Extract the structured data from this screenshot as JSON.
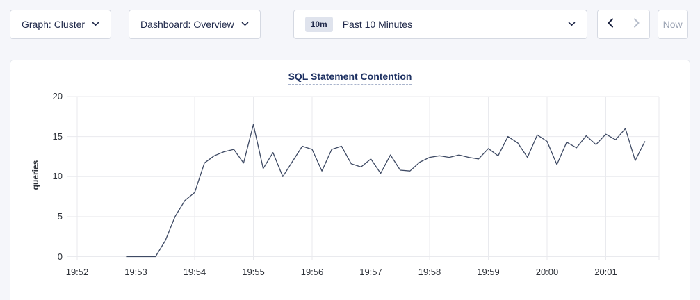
{
  "toolbar": {
    "graph_dropdown": {
      "label": "Graph: Cluster"
    },
    "dashboard_dropdown": {
      "label": "Dashboard: Overview"
    },
    "time_picker": {
      "badge": "10m",
      "label": "Past 10 Minutes"
    },
    "prev_label": "previous time window",
    "next_label": "next time window",
    "now_button": "Now"
  },
  "chart": {
    "title": "SQL Statement Contention",
    "ylabel": "queries"
  },
  "chart_data": {
    "type": "line",
    "title": "SQL Statement Contention",
    "xlabel": "",
    "ylabel": "queries",
    "ylim": [
      0,
      20
    ],
    "yticks": [
      0,
      5,
      10,
      15,
      20
    ],
    "xticks": [
      "19:52",
      "19:53",
      "19:54",
      "19:55",
      "19:56",
      "19:57",
      "19:58",
      "19:59",
      "20:00",
      "20:01"
    ],
    "grid": true,
    "legend": "none",
    "line_color": "#3e4a64",
    "series": [
      {
        "name": "queries",
        "start_time": "19:52:50",
        "end_time": "20:01:40",
        "interval_seconds": 10,
        "values": [
          0,
          0,
          0,
          0,
          2,
          5,
          7,
          8,
          11.7,
          12.6,
          13.1,
          13.4,
          11.7,
          16.5,
          11.0,
          13.0,
          10.0,
          11.9,
          13.8,
          13.4,
          10.7,
          13.4,
          13.8,
          11.6,
          11.2,
          12.2,
          10.4,
          12.7,
          10.8,
          10.7,
          11.8,
          12.4,
          12.6,
          12.4,
          12.7,
          12.4,
          12.2,
          13.5,
          12.6,
          15.0,
          14.2,
          12.4,
          15.2,
          14.4,
          11.5,
          14.3,
          13.6,
          15.1,
          14.0,
          15.3,
          14.6,
          16.0,
          12.0,
          14.4
        ]
      }
    ]
  }
}
